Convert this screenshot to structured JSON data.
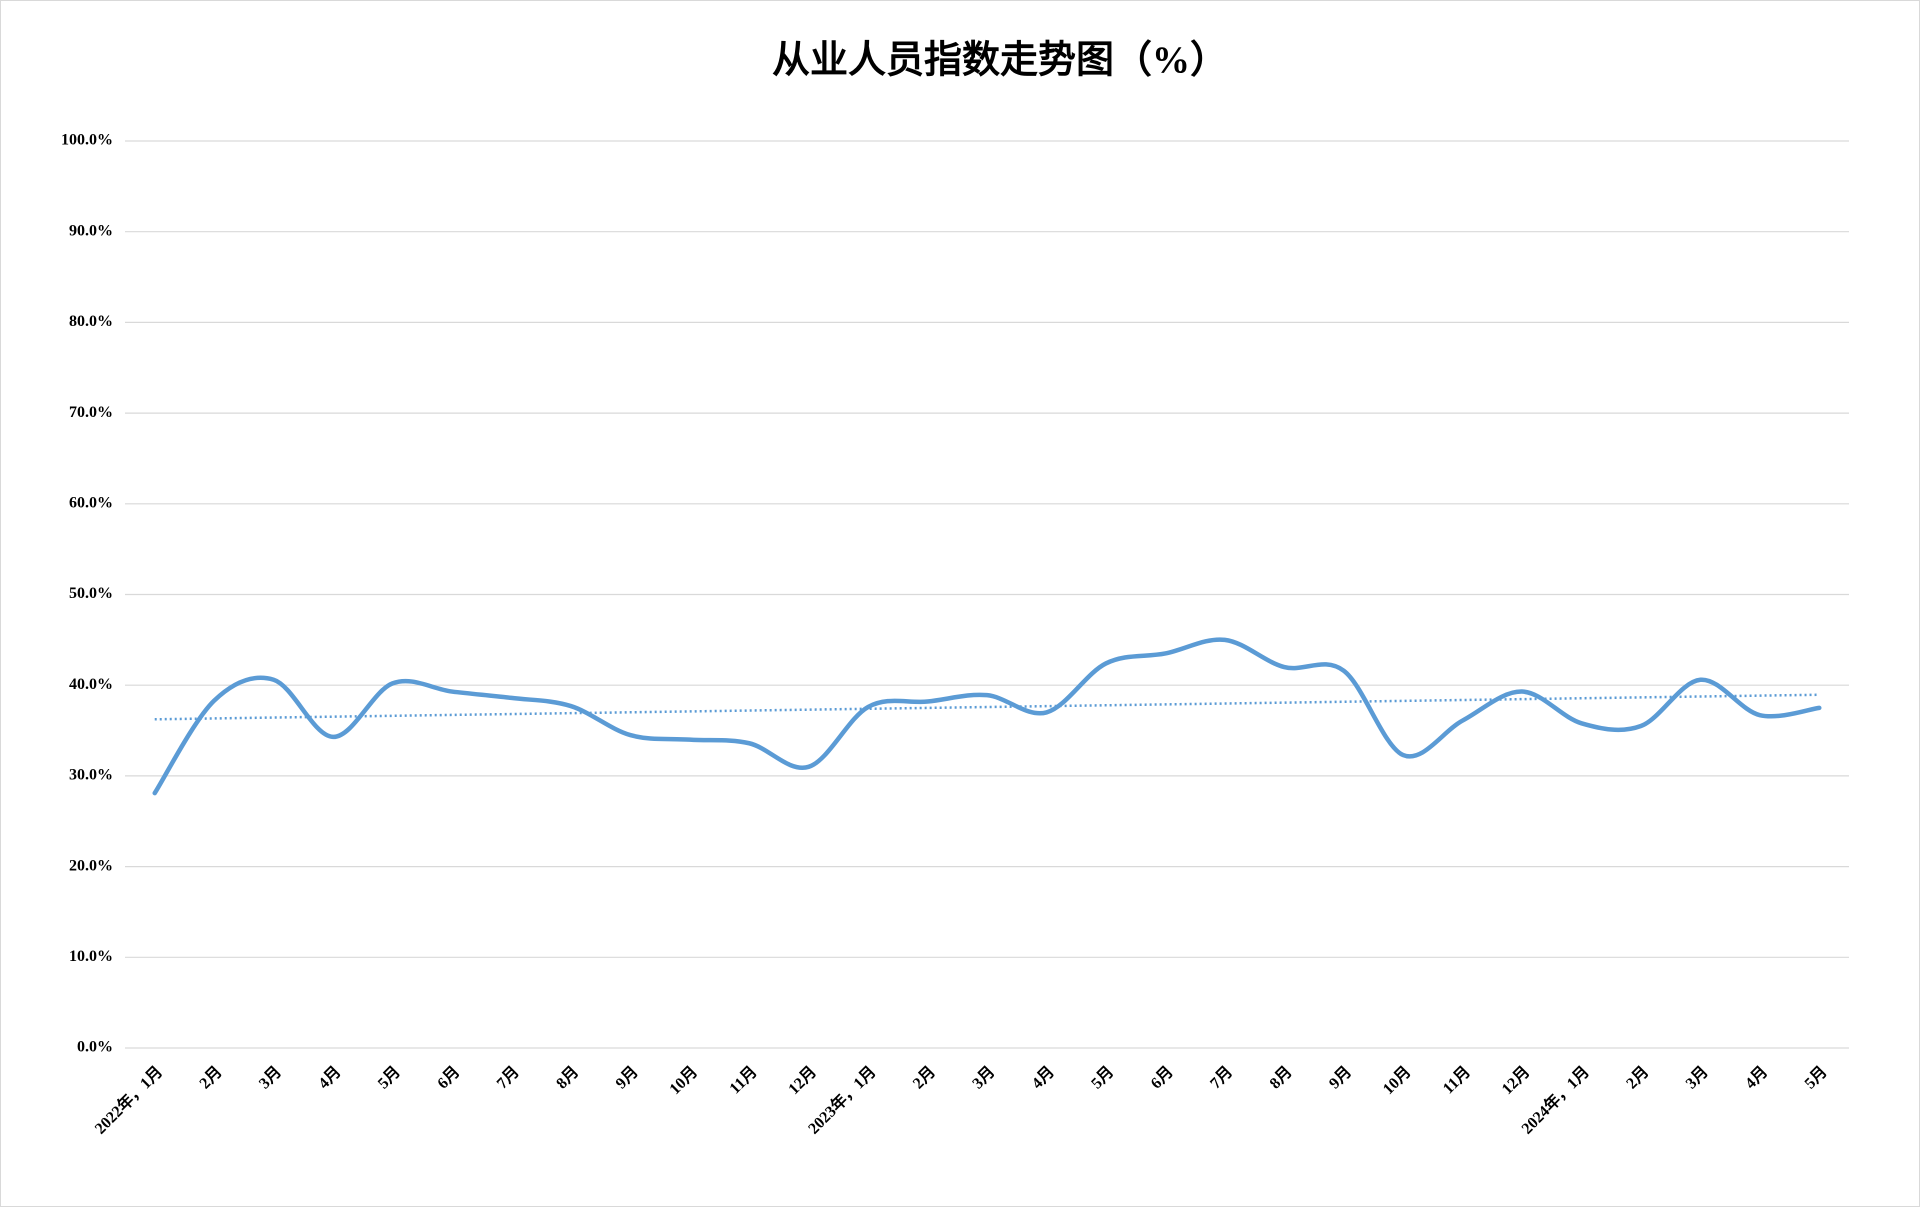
{
  "chart_data": {
    "type": "line",
    "title": "从业人员指数走势图（%）",
    "categories": [
      "2022年，1月",
      "2月",
      "3月",
      "4月",
      "5月",
      "6月",
      "7月",
      "8月",
      "9月",
      "10月",
      "11月",
      "12月",
      "2023年，1月",
      "2月",
      "3月",
      "4月",
      "5月",
      "6月",
      "7月",
      "8月",
      "9月",
      "10月",
      "11月",
      "12月",
      "2024年，1月",
      "2月",
      "3月",
      "4月",
      "5月"
    ],
    "values": [
      28.1,
      38.3,
      40.6,
      34.3,
      40.2,
      39.3,
      38.6,
      37.7,
      34.5,
      34.0,
      33.6,
      31.0,
      37.6,
      38.2,
      38.9,
      37.0,
      42.4,
      43.5,
      45.0,
      42.0,
      41.6,
      32.3,
      36.1,
      39.3,
      35.8,
      35.5,
      40.6,
      36.7,
      37.5
    ],
    "color": "#5b9bd5",
    "smooth": true,
    "trendline": true,
    "ylim": [
      0,
      100
    ],
    "yticks": [
      {
        "value": 0,
        "label": "0.0%"
      },
      {
        "value": 10,
        "label": "10.0%"
      },
      {
        "value": 20,
        "label": "20.0%"
      },
      {
        "value": 30,
        "label": "30.0%"
      },
      {
        "value": 40,
        "label": "40.0%"
      },
      {
        "value": 50,
        "label": "50.0%"
      },
      {
        "value": 60,
        "label": "60.0%"
      },
      {
        "value": 70,
        "label": "70.0%"
      },
      {
        "value": 80,
        "label": "80.0%"
      },
      {
        "value": 90,
        "label": "90.0%"
      },
      {
        "value": 100,
        "label": "100.0%"
      }
    ],
    "grid": true
  }
}
